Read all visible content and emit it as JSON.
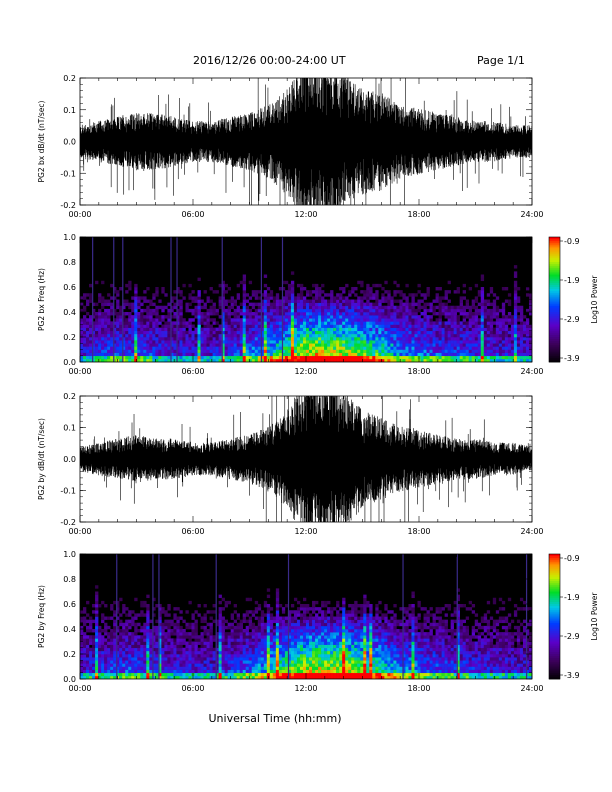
{
  "header": {
    "title": "2016/12/26  00:00-24:00 UT",
    "page": "Page 1/1"
  },
  "xlabel": "Universal Time (hh:mm)",
  "colorbar": {
    "label": "Log10 Power",
    "ticks": [
      "-0.9",
      "-1.9",
      "-2.9",
      "-3.9"
    ],
    "range": [
      -3.9,
      -0.9
    ]
  },
  "chart_data": [
    {
      "type": "line",
      "name": "bx-waveform",
      "ylabel": "PG2 bx dB/dt (nT/sec)",
      "x_ticks": [
        "00:00",
        "06:00",
        "12:00",
        "18:00",
        "24:00"
      ],
      "xlim_hours": [
        0,
        24
      ],
      "ylim": [
        -0.2,
        0.2
      ],
      "y_ticks": [
        "0.2",
        "0.1",
        "0.0",
        "-0.1",
        "-0.2"
      ],
      "envelope_hours": [
        0,
        1,
        2,
        3,
        4,
        5,
        6,
        7,
        8,
        9,
        10,
        11,
        12,
        13,
        14,
        15,
        16,
        17,
        18,
        19,
        20,
        21,
        22,
        23,
        24
      ],
      "envelope_amp": [
        0.04,
        0.05,
        0.06,
        0.07,
        0.07,
        0.06,
        0.05,
        0.05,
        0.06,
        0.07,
        0.09,
        0.13,
        0.2,
        0.2,
        0.16,
        0.13,
        0.12,
        0.09,
        0.08,
        0.07,
        0.06,
        0.05,
        0.05,
        0.04,
        0.04
      ]
    },
    {
      "type": "heatmap",
      "name": "bx-spectrogram",
      "ylabel": "PG2 bx Freq (Hz)",
      "x_ticks": [
        "00:00",
        "06:00",
        "12:00",
        "18:00",
        "24:00"
      ],
      "xlim_hours": [
        0,
        24
      ],
      "ylim": [
        0,
        1.0
      ],
      "y_ticks": [
        "1.0",
        "0.8",
        "0.6",
        "0.4",
        "0.2",
        "0.0"
      ],
      "intensity_hours": [
        0,
        1,
        2,
        3,
        4,
        5,
        6,
        7,
        8,
        9,
        10,
        11,
        12,
        13,
        14,
        15,
        16,
        17,
        18,
        19,
        20,
        21,
        22,
        23,
        24
      ],
      "intensity": [
        0.35,
        0.4,
        0.45,
        0.45,
        0.4,
        0.38,
        0.35,
        0.35,
        0.4,
        0.5,
        0.6,
        0.75,
        0.9,
        0.9,
        0.85,
        0.8,
        0.7,
        0.55,
        0.5,
        0.45,
        0.42,
        0.4,
        0.38,
        0.35,
        0.35
      ]
    },
    {
      "type": "line",
      "name": "by-waveform",
      "ylabel": "PG2 by dB/dt (nT/sec)",
      "x_ticks": [
        "00:00",
        "06:00",
        "12:00",
        "18:00",
        "24:00"
      ],
      "xlim_hours": [
        0,
        24
      ],
      "ylim": [
        -0.2,
        0.2
      ],
      "y_ticks": [
        "0.2",
        "0.1",
        "0.0",
        "-0.1",
        "-0.2"
      ],
      "envelope_hours": [
        0,
        1,
        2,
        3,
        4,
        5,
        6,
        7,
        8,
        9,
        10,
        11,
        12,
        13,
        14,
        15,
        16,
        17,
        18,
        19,
        20,
        21,
        22,
        23,
        24
      ],
      "envelope_amp": [
        0.03,
        0.04,
        0.05,
        0.06,
        0.05,
        0.05,
        0.04,
        0.04,
        0.05,
        0.06,
        0.08,
        0.12,
        0.2,
        0.2,
        0.17,
        0.12,
        0.1,
        0.08,
        0.07,
        0.06,
        0.05,
        0.05,
        0.04,
        0.04,
        0.03
      ]
    },
    {
      "type": "heatmap",
      "name": "by-spectrogram",
      "ylabel": "PG2 by Freq (Hz)",
      "x_ticks": [
        "00:00",
        "06:00",
        "12:00",
        "18:00",
        "24:00"
      ],
      "xlim_hours": [
        0,
        24
      ],
      "ylim": [
        0,
        1.0
      ],
      "y_ticks": [
        "1.0",
        "0.8",
        "0.6",
        "0.4",
        "0.2",
        "0.0"
      ],
      "intensity_hours": [
        0,
        1,
        2,
        3,
        4,
        5,
        6,
        7,
        8,
        9,
        10,
        11,
        12,
        13,
        14,
        15,
        16,
        17,
        18,
        19,
        20,
        21,
        22,
        23,
        24
      ],
      "intensity": [
        0.35,
        0.4,
        0.45,
        0.45,
        0.4,
        0.38,
        0.35,
        0.35,
        0.4,
        0.5,
        0.6,
        0.75,
        0.9,
        0.9,
        0.88,
        0.8,
        0.7,
        0.55,
        0.5,
        0.45,
        0.42,
        0.4,
        0.38,
        0.35,
        0.35
      ]
    }
  ]
}
